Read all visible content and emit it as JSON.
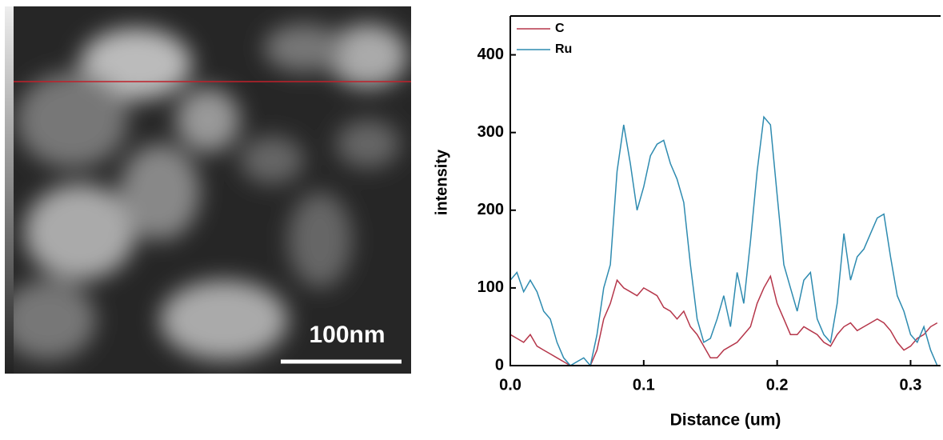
{
  "image": {
    "scale_bar_label": "100nm"
  },
  "chart_data": {
    "type": "line",
    "xlabel": "Distance (um)",
    "ylabel": "intensity",
    "x": [
      0.0,
      0.005,
      0.01,
      0.015,
      0.02,
      0.025,
      0.03,
      0.035,
      0.04,
      0.045,
      0.05,
      0.055,
      0.06,
      0.065,
      0.07,
      0.075,
      0.08,
      0.085,
      0.09,
      0.095,
      0.1,
      0.105,
      0.11,
      0.115,
      0.12,
      0.125,
      0.13,
      0.135,
      0.14,
      0.145,
      0.15,
      0.155,
      0.16,
      0.165,
      0.17,
      0.175,
      0.18,
      0.185,
      0.19,
      0.195,
      0.2,
      0.205,
      0.21,
      0.215,
      0.22,
      0.225,
      0.23,
      0.235,
      0.24,
      0.245,
      0.25,
      0.255,
      0.26,
      0.265,
      0.27,
      0.275,
      0.28,
      0.285,
      0.29,
      0.295,
      0.3,
      0.305,
      0.31,
      0.315,
      0.32
    ],
    "series": [
      {
        "name": "C",
        "color": "#b5364a",
        "values": [
          40,
          35,
          30,
          40,
          25,
          20,
          15,
          10,
          5,
          0,
          0,
          0,
          0,
          20,
          60,
          80,
          110,
          100,
          95,
          90,
          100,
          95,
          90,
          75,
          70,
          60,
          70,
          50,
          40,
          25,
          10,
          10,
          20,
          25,
          30,
          40,
          50,
          80,
          100,
          115,
          80,
          60,
          40,
          40,
          50,
          45,
          40,
          30,
          25,
          40,
          50,
          55,
          45,
          50,
          55,
          60,
          55,
          45,
          30,
          20,
          25,
          35,
          40,
          50,
          55
        ]
      },
      {
        "name": "Ru",
        "color": "#2e8bb0",
        "values": [
          110,
          120,
          95,
          110,
          95,
          70,
          60,
          30,
          10,
          0,
          5,
          10,
          0,
          40,
          100,
          130,
          250,
          310,
          260,
          200,
          230,
          270,
          285,
          290,
          260,
          240,
          210,
          130,
          60,
          30,
          35,
          60,
          90,
          50,
          120,
          80,
          160,
          250,
          320,
          310,
          220,
          130,
          100,
          70,
          110,
          120,
          60,
          40,
          30,
          80,
          170,
          110,
          140,
          150,
          170,
          190,
          195,
          140,
          90,
          70,
          40,
          30,
          50,
          20,
          0
        ]
      }
    ],
    "xlim": [
      0,
      0.3225
    ],
    "xticks": [
      {
        "value": 0,
        "label": "0.0"
      },
      0.1,
      0.2,
      0.3
    ],
    "ylim": [
      0,
      450
    ],
    "yticks": [
      0,
      100,
      200,
      300,
      400
    ],
    "legend": "upper-left"
  }
}
